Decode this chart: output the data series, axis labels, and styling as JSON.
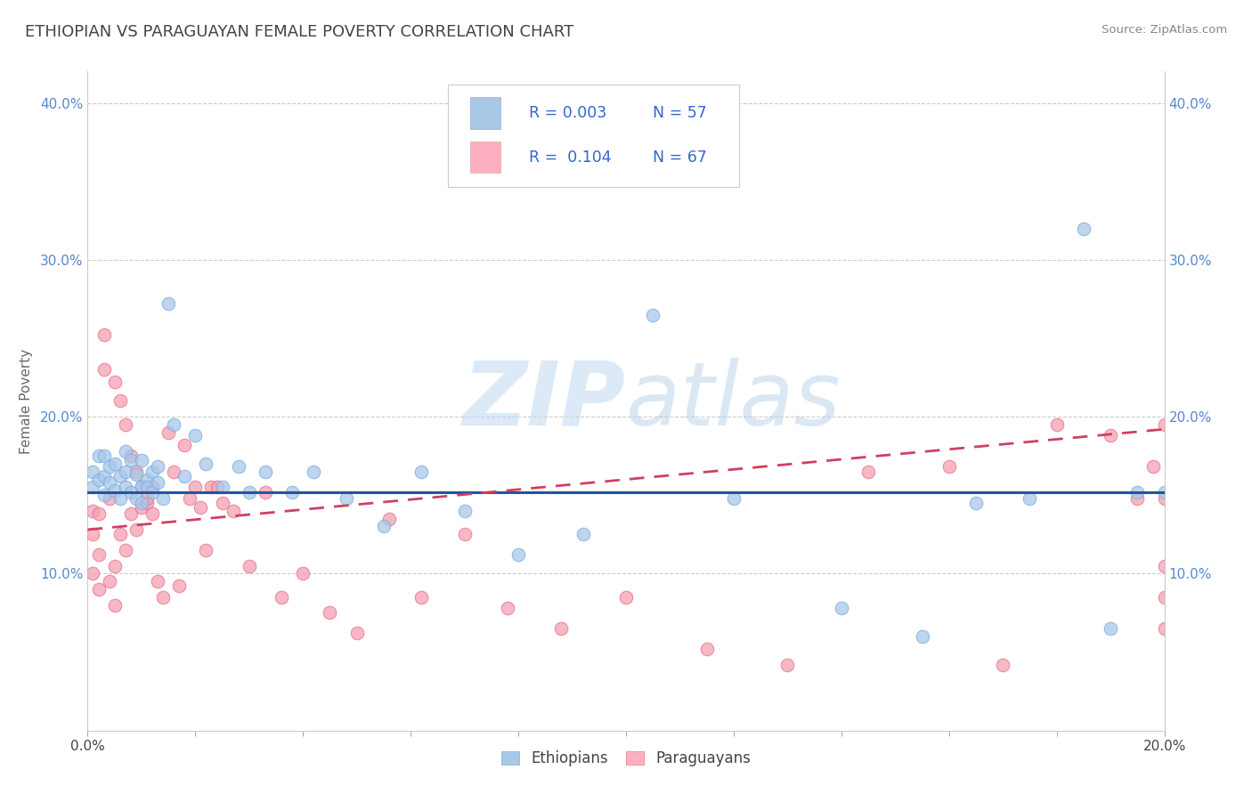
{
  "title": "ETHIOPIAN VS PARAGUAYAN FEMALE POVERTY CORRELATION CHART",
  "source": "Source: ZipAtlas.com",
  "ylabel": "Female Poverty",
  "x_min": 0.0,
  "x_max": 0.2,
  "y_min": 0.0,
  "y_max": 0.42,
  "blue_color": "#a8c8e8",
  "blue_edge_color": "#7aace0",
  "pink_color": "#f4a0b0",
  "pink_edge_color": "#e87090",
  "blue_line_color": "#2155a0",
  "pink_line_color": "#d04060",
  "legend_text_color": "#3366cc",
  "legend_R_blue": "R = 0.003",
  "legend_N_blue": "N = 57",
  "legend_R_pink": "R =  0.104",
  "legend_N_pink": "N = 67",
  "watermark": "ZIPatlas",
  "legend_label_blue": "Ethiopians",
  "legend_label_pink": "Paraguayans",
  "blue_line_y0": 0.152,
  "blue_line_y1": 0.152,
  "pink_line_y0": 0.128,
  "pink_line_y1": 0.192,
  "ethiopians_x": [
    0.001,
    0.001,
    0.002,
    0.002,
    0.003,
    0.003,
    0.003,
    0.004,
    0.004,
    0.005,
    0.005,
    0.006,
    0.006,
    0.007,
    0.007,
    0.007,
    0.008,
    0.008,
    0.009,
    0.009,
    0.01,
    0.01,
    0.01,
    0.011,
    0.011,
    0.012,
    0.012,
    0.013,
    0.013,
    0.014,
    0.015,
    0.016,
    0.018,
    0.02,
    0.022,
    0.025,
    0.028,
    0.03,
    0.033,
    0.038,
    0.042,
    0.048,
    0.055,
    0.062,
    0.07,
    0.08,
    0.092,
    0.105,
    0.12,
    0.14,
    0.155,
    0.165,
    0.175,
    0.185,
    0.19,
    0.195,
    0.2
  ],
  "ethiopians_y": [
    0.155,
    0.165,
    0.16,
    0.175,
    0.15,
    0.162,
    0.175,
    0.158,
    0.168,
    0.153,
    0.17,
    0.162,
    0.148,
    0.155,
    0.165,
    0.178,
    0.152,
    0.172,
    0.148,
    0.163,
    0.156,
    0.172,
    0.145,
    0.16,
    0.155,
    0.165,
    0.152,
    0.158,
    0.168,
    0.148,
    0.272,
    0.195,
    0.162,
    0.188,
    0.17,
    0.155,
    0.168,
    0.152,
    0.165,
    0.152,
    0.165,
    0.148,
    0.13,
    0.165,
    0.14,
    0.112,
    0.125,
    0.265,
    0.148,
    0.078,
    0.06,
    0.145,
    0.148,
    0.32,
    0.065,
    0.152,
    0.152
  ],
  "paraguayans_x": [
    0.001,
    0.001,
    0.001,
    0.002,
    0.002,
    0.002,
    0.003,
    0.003,
    0.004,
    0.004,
    0.005,
    0.005,
    0.005,
    0.006,
    0.006,
    0.007,
    0.007,
    0.008,
    0.008,
    0.009,
    0.009,
    0.01,
    0.01,
    0.011,
    0.011,
    0.012,
    0.012,
    0.013,
    0.014,
    0.015,
    0.016,
    0.017,
    0.018,
    0.019,
    0.02,
    0.021,
    0.022,
    0.023,
    0.024,
    0.025,
    0.027,
    0.03,
    0.033,
    0.036,
    0.04,
    0.045,
    0.05,
    0.056,
    0.062,
    0.07,
    0.078,
    0.088,
    0.1,
    0.115,
    0.13,
    0.145,
    0.16,
    0.17,
    0.18,
    0.19,
    0.195,
    0.198,
    0.2,
    0.2,
    0.2,
    0.2,
    0.2
  ],
  "paraguayans_y": [
    0.14,
    0.125,
    0.1,
    0.138,
    0.112,
    0.09,
    0.252,
    0.23,
    0.148,
    0.095,
    0.222,
    0.105,
    0.08,
    0.21,
    0.125,
    0.195,
    0.115,
    0.175,
    0.138,
    0.165,
    0.128,
    0.155,
    0.142,
    0.145,
    0.148,
    0.138,
    0.155,
    0.095,
    0.085,
    0.19,
    0.165,
    0.092,
    0.182,
    0.148,
    0.155,
    0.142,
    0.115,
    0.155,
    0.155,
    0.145,
    0.14,
    0.105,
    0.152,
    0.085,
    0.1,
    0.075,
    0.062,
    0.135,
    0.085,
    0.125,
    0.078,
    0.065,
    0.085,
    0.052,
    0.042,
    0.165,
    0.168,
    0.042,
    0.195,
    0.188,
    0.148,
    0.168,
    0.148,
    0.065,
    0.085,
    0.105,
    0.195
  ]
}
